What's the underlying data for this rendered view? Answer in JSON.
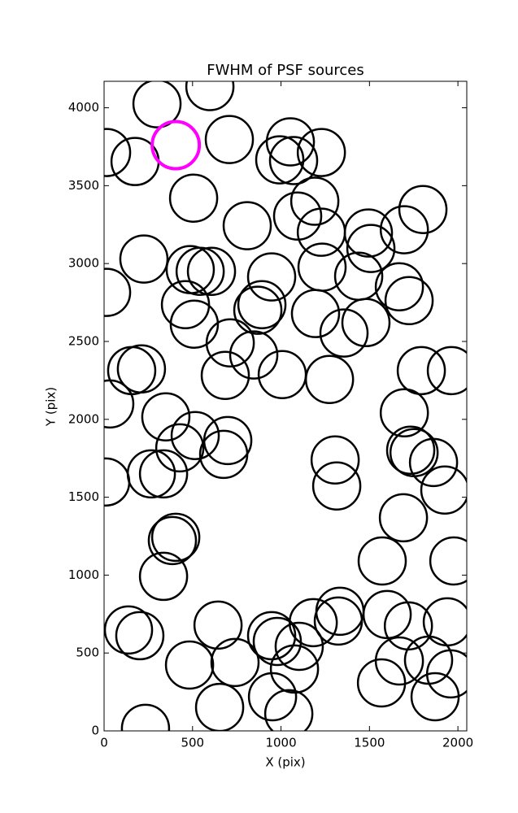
{
  "chart_data": {
    "type": "scatter",
    "title": "FWHM of PSF sources",
    "x_label": "X (pix)",
    "y_label": "Y (pix)",
    "xlim": [
      0,
      2050
    ],
    "ylim": [
      0,
      4170
    ],
    "xticks": [
      0,
      500,
      1000,
      1500,
      2000
    ],
    "yticks": [
      0,
      500,
      1000,
      1500,
      2000,
      2500,
      3000,
      3500,
      4000
    ],
    "grid": false,
    "series": [
      {
        "color": "#000000",
        "x": [
          299,
          598,
          14,
          175,
          708,
          1053,
          993,
          1071,
          1228,
          506,
          1191,
          809,
          1094,
          1228,
          1494,
          1508,
          1697,
          1802,
          225,
          487,
          543,
          607,
          947,
          1232,
          1439,
          14,
          1669,
          1724,
          460,
          892,
          869,
          510,
          1195,
          1356,
          1480,
          713,
          846,
          156,
          211,
          685,
          1007,
          1274,
          1793,
          1963,
          32,
          349,
          1697,
          515,
          699,
          428,
          676,
          1733,
          1752,
          1862,
          1306,
          9,
          267,
          336,
          1315,
          1926,
          1692,
          405,
          386,
          1572,
          1977,
          336,
          138,
          202,
          644,
          947,
          979,
          1103,
          1182,
          1333,
          1324,
          1600,
          1720,
          1940,
          483,
          740,
          1076,
          1669,
          1834,
          1959,
          1568,
          952,
          1871,
          653,
          1044,
          234
        ],
        "values": [
          4026,
          4136,
          3713,
          3655,
          3796,
          3781,
          3666,
          3661,
          3713,
          3420,
          3400,
          3243,
          3305,
          3201,
          3196,
          3097,
          3217,
          3347,
          3029,
          2961,
          2950,
          2950,
          2914,
          2977,
          2919,
          2815,
          2851,
          2762,
          2736,
          2736,
          2700,
          2611,
          2679,
          2554,
          2621,
          2491,
          2413,
          2313,
          2324,
          2282,
          2287,
          2256,
          2313,
          2313,
          2099,
          2016,
          2042,
          1896,
          1864,
          1817,
          1775,
          1802,
          1786,
          1723,
          1739,
          1598,
          1650,
          1650,
          1572,
          1546,
          1368,
          1243,
          1222,
          1091,
          1091,
          992,
          648,
          611,
          679,
          611,
          574,
          543,
          695,
          768,
          705,
          747,
          674,
          700,
          423,
          439,
          397,
          449,
          454,
          366,
          308,
          219,
          219,
          151,
          110,
          16
        ]
      },
      {
        "color": "#ff00ff",
        "x": [
          405
        ],
        "values": [
          3760
        ]
      }
    ]
  }
}
